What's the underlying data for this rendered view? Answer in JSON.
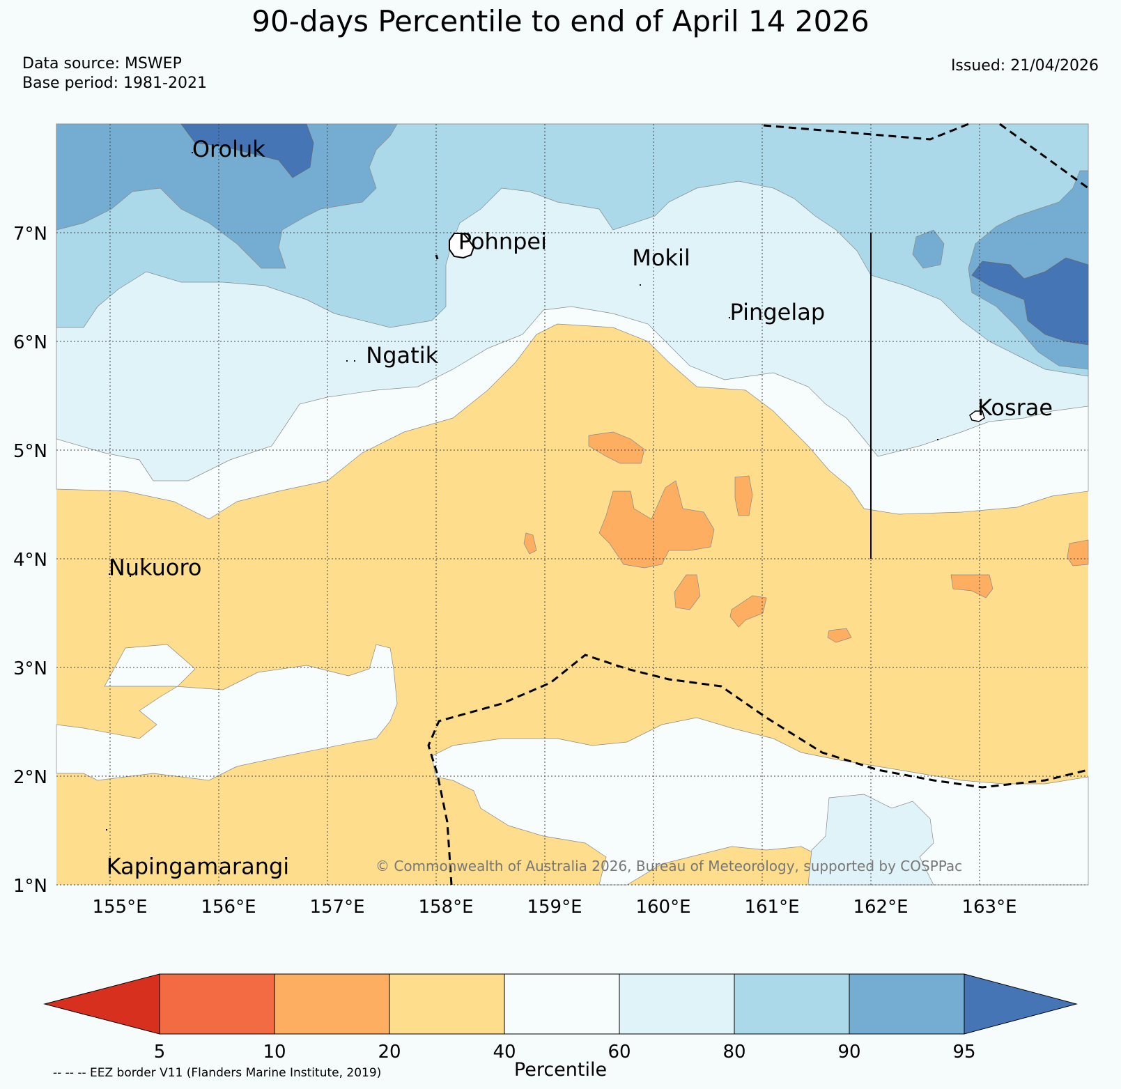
{
  "title": "90-days Percentile to end of April 14 2026",
  "meta": {
    "data_source": "Data source: MSWEP",
    "base_period": "Base period: 1981-2021",
    "issued": "Issued: 21/04/2026"
  },
  "copyright": "© Commonwealth of Australia 2026, Bureau of Meteorology, supported by COSPPac",
  "footnote": "-- -- -- EEZ border V11 (Flanders Marine Institute, 2019)",
  "map": {
    "lon_range": [
      154.5,
      164.0
    ],
    "lat_range": [
      1.0,
      8.0
    ],
    "lon_ticks": [
      "155°E",
      "156°E",
      "157°E",
      "158°E",
      "159°E",
      "160°E",
      "161°E",
      "162°E",
      "163°E"
    ],
    "lat_ticks": [
      "1°N",
      "2°N",
      "3°N",
      "4°N",
      "5°N",
      "6°N",
      "7°N"
    ],
    "islands": [
      {
        "name": "Oroluk",
        "lon": 155.75,
        "lat": 7.7
      },
      {
        "name": "Pohnpei",
        "lon": 158.2,
        "lat": 6.85
      },
      {
        "name": "Mokil",
        "lon": 159.8,
        "lat": 6.7
      },
      {
        "name": "Pingelap",
        "lon": 160.7,
        "lat": 6.2
      },
      {
        "name": "Ngatik",
        "lon": 157.35,
        "lat": 5.8
      },
      {
        "name": "Kosrae",
        "lon": 162.98,
        "lat": 5.32
      },
      {
        "name": "Nukuoro",
        "lon": 154.98,
        "lat": 3.85
      },
      {
        "name": "Kapingamarangi",
        "lon": 154.96,
        "lat": 1.1
      }
    ]
  },
  "colorbar": {
    "label": "Percentile",
    "ticks": [
      "5",
      "10",
      "20",
      "40",
      "60",
      "80",
      "90",
      "95"
    ],
    "colors": {
      "under": "#d7301f",
      "c5_10": "#f26b43",
      "c10_20": "#fdae61",
      "c20_40": "#fedd8d",
      "c40_60": "#f7fcfd",
      "c60_80": "#e0f3f8",
      "c80_90": "#abd9e9",
      "c90_95": "#74add1",
      "over": "#4575b4"
    }
  }
}
